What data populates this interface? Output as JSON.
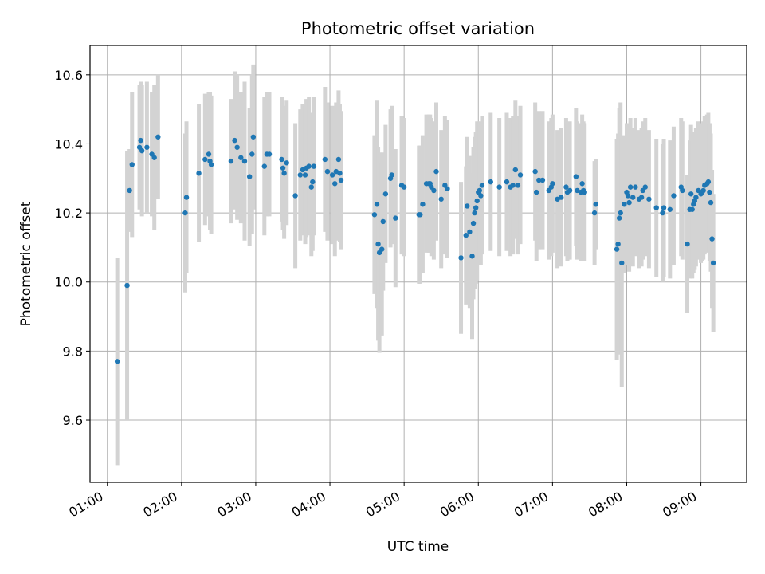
{
  "chart_data": {
    "type": "scatter",
    "title": "Photometric offset variation",
    "xlabel": "UTC time",
    "ylabel": "Photometric offset",
    "xlim": [
      "00:46",
      "09:37"
    ],
    "ylim": [
      9.42,
      10.685
    ],
    "x_ticks": [
      "01:00",
      "02:00",
      "03:00",
      "04:00",
      "05:00",
      "06:00",
      "07:00",
      "08:00",
      "09:00"
    ],
    "y_ticks": [
      "9.6",
      "9.8",
      "10.0",
      "10.2",
      "10.4",
      "10.6"
    ],
    "grid": true,
    "colors": {
      "point": "#1f77b4",
      "errorbar": "#d3d3d3",
      "grid": "#b0b0b0"
    },
    "series": [
      {
        "points": [
          {
            "t": "01:08",
            "y": 9.77,
            "err": 0.3
          },
          {
            "t": "01:16",
            "y": 9.99,
            "err": 0.39
          },
          {
            "t": "01:18",
            "y": 10.265,
            "err": 0.12
          },
          {
            "t": "01:20",
            "y": 10.34,
            "err": 0.21
          },
          {
            "t": "01:26",
            "y": 10.39,
            "err": 0.18
          },
          {
            "t": "01:27",
            "y": 10.41,
            "err": 0.17
          },
          {
            "t": "01:28",
            "y": 10.38,
            "err": 0.19
          },
          {
            "t": "01:32",
            "y": 10.39,
            "err": 0.19
          },
          {
            "t": "01:36",
            "y": 10.37,
            "err": 0.18
          },
          {
            "t": "01:38",
            "y": 10.36,
            "err": 0.21
          },
          {
            "t": "01:41",
            "y": 10.42,
            "err": 0.18
          },
          {
            "t": "02:03",
            "y": 10.2,
            "err": 0.23
          },
          {
            "t": "02:04",
            "y": 10.245,
            "err": 0.22
          },
          {
            "t": "02:14",
            "y": 10.315,
            "err": 0.2
          },
          {
            "t": "02:19",
            "y": 10.355,
            "err": 0.19
          },
          {
            "t": "02:22",
            "y": 10.37,
            "err": 0.18
          },
          {
            "t": "02:23",
            "y": 10.35,
            "err": 0.2
          },
          {
            "t": "02:24",
            "y": 10.34,
            "err": 0.2
          },
          {
            "t": "02:40",
            "y": 10.35,
            "err": 0.18
          },
          {
            "t": "02:43",
            "y": 10.41,
            "err": 0.2
          },
          {
            "t": "02:45",
            "y": 10.39,
            "err": 0.21
          },
          {
            "t": "02:48",
            "y": 10.36,
            "err": 0.19
          },
          {
            "t": "02:51",
            "y": 10.35,
            "err": 0.23
          },
          {
            "t": "02:55",
            "y": 10.305,
            "err": 0.2
          },
          {
            "t": "02:57",
            "y": 10.37,
            "err": 0.23
          },
          {
            "t": "02:58",
            "y": 10.42,
            "err": 0.21
          },
          {
            "t": "03:07",
            "y": 10.335,
            "err": 0.2
          },
          {
            "t": "03:09",
            "y": 10.37,
            "err": 0.18
          },
          {
            "t": "03:11",
            "y": 10.37,
            "err": 0.18
          },
          {
            "t": "03:21",
            "y": 10.355,
            "err": 0.18
          },
          {
            "t": "03:22",
            "y": 10.33,
            "err": 0.18
          },
          {
            "t": "03:23",
            "y": 10.315,
            "err": 0.19
          },
          {
            "t": "03:25",
            "y": 10.345,
            "err": 0.18
          },
          {
            "t": "03:32",
            "y": 10.25,
            "err": 0.21
          },
          {
            "t": "03:36",
            "y": 10.31,
            "err": 0.19
          },
          {
            "t": "03:38",
            "y": 10.325,
            "err": 0.19
          },
          {
            "t": "03:40",
            "y": 10.31,
            "err": 0.2
          },
          {
            "t": "03:41",
            "y": 10.33,
            "err": 0.2
          },
          {
            "t": "03:43",
            "y": 10.335,
            "err": 0.2
          },
          {
            "t": "03:45",
            "y": 10.275,
            "err": 0.2
          },
          {
            "t": "03:46",
            "y": 10.29,
            "err": 0.2
          },
          {
            "t": "03:47",
            "y": 10.335,
            "err": 0.2
          },
          {
            "t": "03:56",
            "y": 10.355,
            "err": 0.21
          },
          {
            "t": "03:58",
            "y": 10.32,
            "err": 0.2
          },
          {
            "t": "04:02",
            "y": 10.31,
            "err": 0.2
          },
          {
            "t": "04:04",
            "y": 10.285,
            "err": 0.21
          },
          {
            "t": "04:05",
            "y": 10.32,
            "err": 0.2
          },
          {
            "t": "04:07",
            "y": 10.355,
            "err": 0.2
          },
          {
            "t": "04:08",
            "y": 10.315,
            "err": 0.2
          },
          {
            "t": "04:09",
            "y": 10.295,
            "err": 0.2
          },
          {
            "t": "04:36",
            "y": 10.195,
            "err": 0.23
          },
          {
            "t": "04:38",
            "y": 10.225,
            "err": 0.3
          },
          {
            "t": "04:39",
            "y": 10.11,
            "err": 0.28
          },
          {
            "t": "04:40",
            "y": 10.085,
            "err": 0.29
          },
          {
            "t": "04:42",
            "y": 10.095,
            "err": 0.25
          },
          {
            "t": "04:43",
            "y": 10.175,
            "err": 0.2
          },
          {
            "t": "04:45",
            "y": 10.255,
            "err": 0.2
          },
          {
            "t": "04:49",
            "y": 10.3,
            "err": 0.2
          },
          {
            "t": "04:50",
            "y": 10.31,
            "err": 0.2
          },
          {
            "t": "04:53",
            "y": 10.185,
            "err": 0.2
          },
          {
            "t": "04:58",
            "y": 10.28,
            "err": 0.2
          },
          {
            "t": "05:00",
            "y": 10.275,
            "err": 0.2
          },
          {
            "t": "05:12",
            "y": 10.195,
            "err": 0.2
          },
          {
            "t": "05:13",
            "y": 10.195,
            "err": 0.2
          },
          {
            "t": "05:15",
            "y": 10.225,
            "err": 0.2
          },
          {
            "t": "05:18",
            "y": 10.285,
            "err": 0.2
          },
          {
            "t": "05:20",
            "y": 10.285,
            "err": 0.2
          },
          {
            "t": "05:21",
            "y": 10.285,
            "err": 0.2
          },
          {
            "t": "05:22",
            "y": 10.275,
            "err": 0.2
          },
          {
            "t": "05:24",
            "y": 10.265,
            "err": 0.2
          },
          {
            "t": "05:26",
            "y": 10.32,
            "err": 0.2
          },
          {
            "t": "05:30",
            "y": 10.24,
            "err": 0.2
          },
          {
            "t": "05:33",
            "y": 10.28,
            "err": 0.2
          },
          {
            "t": "05:35",
            "y": 10.27,
            "err": 0.2
          },
          {
            "t": "05:46",
            "y": 10.07,
            "err": 0.22
          },
          {
            "t": "05:50",
            "y": 10.135,
            "err": 0.2
          },
          {
            "t": "05:51",
            "y": 10.22,
            "err": 0.2
          },
          {
            "t": "05:53",
            "y": 10.145,
            "err": 0.22
          },
          {
            "t": "05:55",
            "y": 10.075,
            "err": 0.24
          },
          {
            "t": "05:56",
            "y": 10.17,
            "err": 0.22
          },
          {
            "t": "05:57",
            "y": 10.2,
            "err": 0.22
          },
          {
            "t": "05:58",
            "y": 10.215,
            "err": 0.22
          },
          {
            "t": "05:59",
            "y": 10.235,
            "err": 0.23
          },
          {
            "t": "06:00",
            "y": 10.26,
            "err": 0.2
          },
          {
            "t": "06:01",
            "y": 10.265,
            "err": 0.2
          },
          {
            "t": "06:02",
            "y": 10.25,
            "err": 0.2
          },
          {
            "t": "06:03",
            "y": 10.28,
            "err": 0.2
          },
          {
            "t": "06:10",
            "y": 10.29,
            "err": 0.2
          },
          {
            "t": "06:17",
            "y": 10.275,
            "err": 0.2
          },
          {
            "t": "06:23",
            "y": 10.29,
            "err": 0.2
          },
          {
            "t": "06:26",
            "y": 10.275,
            "err": 0.2
          },
          {
            "t": "06:28",
            "y": 10.28,
            "err": 0.2
          },
          {
            "t": "06:30",
            "y": 10.325,
            "err": 0.2
          },
          {
            "t": "06:32",
            "y": 10.28,
            "err": 0.2
          },
          {
            "t": "06:34",
            "y": 10.31,
            "err": 0.2
          },
          {
            "t": "06:46",
            "y": 10.32,
            "err": 0.2
          },
          {
            "t": "06:47",
            "y": 10.26,
            "err": 0.2
          },
          {
            "t": "06:49",
            "y": 10.295,
            "err": 0.2
          },
          {
            "t": "06:52",
            "y": 10.295,
            "err": 0.2
          },
          {
            "t": "06:57",
            "y": 10.265,
            "err": 0.2
          },
          {
            "t": "06:59",
            "y": 10.275,
            "err": 0.2
          },
          {
            "t": "07:00",
            "y": 10.285,
            "err": 0.2
          },
          {
            "t": "07:04",
            "y": 10.24,
            "err": 0.2
          },
          {
            "t": "07:07",
            "y": 10.245,
            "err": 0.2
          },
          {
            "t": "07:11",
            "y": 10.275,
            "err": 0.2
          },
          {
            "t": "07:12",
            "y": 10.26,
            "err": 0.2
          },
          {
            "t": "07:14",
            "y": 10.265,
            "err": 0.2
          },
          {
            "t": "07:19",
            "y": 10.305,
            "err": 0.2
          },
          {
            "t": "07:20",
            "y": 10.265,
            "err": 0.2
          },
          {
            "t": "07:23",
            "y": 10.26,
            "err": 0.2
          },
          {
            "t": "07:24",
            "y": 10.285,
            "err": 0.2
          },
          {
            "t": "07:25",
            "y": 10.265,
            "err": 0.2
          },
          {
            "t": "07:26",
            "y": 10.26,
            "err": 0.2
          },
          {
            "t": "07:34",
            "y": 10.2,
            "err": 0.15
          },
          {
            "t": "07:35",
            "y": 10.225,
            "err": 0.13
          },
          {
            "t": "07:52",
            "y": 10.095,
            "err": 0.32
          },
          {
            "t": "07:53",
            "y": 10.11,
            "err": 0.32
          },
          {
            "t": "07:54",
            "y": 10.185,
            "err": 0.32
          },
          {
            "t": "07:55",
            "y": 10.2,
            "err": 0.32
          },
          {
            "t": "07:56",
            "y": 10.055,
            "err": 0.36
          },
          {
            "t": "07:58",
            "y": 10.225,
            "err": 0.2
          },
          {
            "t": "08:00",
            "y": 10.26,
            "err": 0.2
          },
          {
            "t": "08:01",
            "y": 10.25,
            "err": 0.2
          },
          {
            "t": "08:02",
            "y": 10.23,
            "err": 0.2
          },
          {
            "t": "08:03",
            "y": 10.275,
            "err": 0.2
          },
          {
            "t": "08:05",
            "y": 10.245,
            "err": 0.2
          },
          {
            "t": "08:07",
            "y": 10.275,
            "err": 0.2
          },
          {
            "t": "08:10",
            "y": 10.24,
            "err": 0.2
          },
          {
            "t": "08:12",
            "y": 10.245,
            "err": 0.2
          },
          {
            "t": "08:13",
            "y": 10.265,
            "err": 0.2
          },
          {
            "t": "08:15",
            "y": 10.275,
            "err": 0.2
          },
          {
            "t": "08:18",
            "y": 10.24,
            "err": 0.2
          },
          {
            "t": "08:24",
            "y": 10.215,
            "err": 0.2
          },
          {
            "t": "08:29",
            "y": 10.2,
            "err": 0.2
          },
          {
            "t": "08:30",
            "y": 10.215,
            "err": 0.2
          },
          {
            "t": "08:35",
            "y": 10.21,
            "err": 0.2
          },
          {
            "t": "08:38",
            "y": 10.25,
            "err": 0.2
          },
          {
            "t": "08:44",
            "y": 10.275,
            "err": 0.2
          },
          {
            "t": "08:45",
            "y": 10.265,
            "err": 0.2
          },
          {
            "t": "08:49",
            "y": 10.11,
            "err": 0.2
          },
          {
            "t": "08:51",
            "y": 10.21,
            "err": 0.2
          },
          {
            "t": "08:52",
            "y": 10.255,
            "err": 0.2
          },
          {
            "t": "08:53",
            "y": 10.21,
            "err": 0.2
          },
          {
            "t": "08:54",
            "y": 10.225,
            "err": 0.2
          },
          {
            "t": "08:55",
            "y": 10.235,
            "err": 0.2
          },
          {
            "t": "08:56",
            "y": 10.245,
            "err": 0.2
          },
          {
            "t": "08:58",
            "y": 10.265,
            "err": 0.2
          },
          {
            "t": "09:00",
            "y": 10.255,
            "err": 0.2
          },
          {
            "t": "09:01",
            "y": 10.26,
            "err": 0.2
          },
          {
            "t": "09:02",
            "y": 10.265,
            "err": 0.2
          },
          {
            "t": "09:03",
            "y": 10.28,
            "err": 0.2
          },
          {
            "t": "09:05",
            "y": 10.285,
            "err": 0.2
          },
          {
            "t": "09:06",
            "y": 10.29,
            "err": 0.2
          },
          {
            "t": "09:07",
            "y": 10.26,
            "err": 0.2
          },
          {
            "t": "09:08",
            "y": 10.23,
            "err": 0.2
          },
          {
            "t": "09:09",
            "y": 10.125,
            "err": 0.2
          },
          {
            "t": "09:10",
            "y": 10.055,
            "err": 0.2
          }
        ]
      }
    ]
  }
}
